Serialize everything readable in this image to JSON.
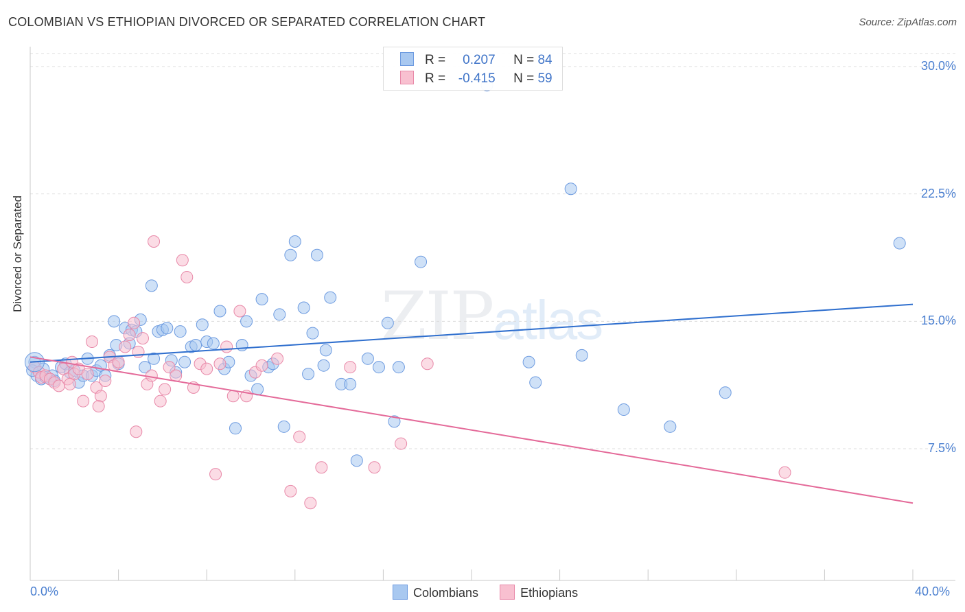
{
  "header": {
    "title": "COLOMBIAN VS ETHIOPIAN DIVORCED OR SEPARATED CORRELATION CHART",
    "source": "Source: ZipAtlas.com"
  },
  "watermark": {
    "zip": "ZIP",
    "atlas": "atlas"
  },
  "legend": {
    "r_label": "R =",
    "n_label": "N =",
    "rows": [
      {
        "r": "0.207",
        "n": "84",
        "color": "#a8c8f0",
        "border": "#6d9be0"
      },
      {
        "r": "-0.415",
        "n": "59",
        "color": "#f8c0d0",
        "border": "#e888a8"
      }
    ]
  },
  "bottom_legend": [
    {
      "label": "Colombians",
      "color": "#a8c8f0",
      "border": "#6d9be0"
    },
    {
      "label": "Ethiopians",
      "color": "#f8c0d0",
      "border": "#e888a8"
    }
  ],
  "chart_data": {
    "type": "scatter",
    "title": "COLOMBIAN VS ETHIOPIAN DIVORCED OR SEPARATED CORRELATION CHART",
    "xlabel": "",
    "ylabel": "Divorced or Separated",
    "xlim": [
      0,
      40
    ],
    "ylim": [
      0,
      31
    ],
    "x_tick_labels": [
      "0.0%",
      "40.0%"
    ],
    "y_ticks": [
      7.5,
      15.0,
      22.5,
      30.0
    ],
    "y_tick_labels": [
      "7.5%",
      "15.0%",
      "22.5%",
      "30.0%"
    ],
    "grid": true,
    "series": [
      {
        "name": "Colombians",
        "color": "#6d9be0",
        "fill": "#a8c8f0",
        "trend": {
          "x": [
            0,
            40
          ],
          "y": [
            12.6,
            16.0
          ],
          "color": "#2f6fce"
        },
        "points": [
          [
            0.2,
            12.6
          ],
          [
            0.3,
            11.8
          ],
          [
            0.5,
            11.6
          ],
          [
            0.6,
            12.2
          ],
          [
            0.7,
            11.7
          ],
          [
            0.9,
            11.6
          ],
          [
            1.0,
            11.8
          ],
          [
            1.1,
            11.5
          ],
          [
            1.4,
            12.3
          ],
          [
            1.6,
            12.5
          ],
          [
            1.8,
            12.0
          ],
          [
            2.0,
            12.1
          ],
          [
            2.2,
            11.4
          ],
          [
            2.4,
            11.8
          ],
          [
            2.6,
            12.8
          ],
          [
            2.8,
            11.8
          ],
          [
            3.0,
            12.1
          ],
          [
            3.2,
            12.4
          ],
          [
            3.4,
            11.8
          ],
          [
            3.6,
            13.0
          ],
          [
            3.8,
            15.0
          ],
          [
            3.9,
            13.6
          ],
          [
            4.0,
            12.5
          ],
          [
            4.3,
            14.6
          ],
          [
            4.5,
            13.7
          ],
          [
            4.6,
            14.5
          ],
          [
            4.8,
            14.4
          ],
          [
            5.0,
            15.1
          ],
          [
            5.2,
            12.3
          ],
          [
            5.5,
            17.1
          ],
          [
            5.6,
            12.8
          ],
          [
            5.8,
            14.4
          ],
          [
            6.0,
            14.5
          ],
          [
            6.2,
            14.6
          ],
          [
            6.4,
            12.7
          ],
          [
            6.6,
            12.0
          ],
          [
            6.8,
            14.4
          ],
          [
            7.0,
            12.6
          ],
          [
            7.3,
            13.5
          ],
          [
            7.5,
            13.6
          ],
          [
            7.8,
            14.8
          ],
          [
            8.0,
            13.8
          ],
          [
            8.3,
            13.7
          ],
          [
            8.6,
            15.6
          ],
          [
            8.8,
            12.2
          ],
          [
            9.0,
            12.6
          ],
          [
            9.3,
            8.7
          ],
          [
            9.6,
            13.6
          ],
          [
            9.8,
            15.0
          ],
          [
            10.0,
            11.8
          ],
          [
            10.3,
            11.0
          ],
          [
            10.5,
            16.3
          ],
          [
            10.8,
            12.3
          ],
          [
            11.0,
            12.5
          ],
          [
            11.3,
            15.4
          ],
          [
            11.5,
            8.8
          ],
          [
            11.8,
            18.9
          ],
          [
            12.0,
            19.7
          ],
          [
            12.4,
            15.8
          ],
          [
            12.6,
            11.9
          ],
          [
            12.8,
            14.3
          ],
          [
            13.0,
            18.9
          ],
          [
            13.3,
            12.4
          ],
          [
            13.6,
            16.4
          ],
          [
            13.4,
            13.3
          ],
          [
            14.1,
            11.3
          ],
          [
            14.5,
            11.3
          ],
          [
            14.8,
            6.8
          ],
          [
            15.3,
            12.8
          ],
          [
            15.8,
            12.3
          ],
          [
            16.2,
            14.9
          ],
          [
            16.5,
            9.1
          ],
          [
            16.7,
            12.3
          ],
          [
            17.7,
            18.5
          ],
          [
            20.7,
            28.9
          ],
          [
            22.6,
            12.6
          ],
          [
            22.9,
            11.4
          ],
          [
            24.5,
            22.8
          ],
          [
            25.0,
            13.0
          ],
          [
            26.9,
            9.8
          ],
          [
            29.0,
            8.8
          ],
          [
            31.5,
            10.8
          ],
          [
            39.4,
            19.6
          ],
          [
            0.1,
            12.1
          ]
        ]
      },
      {
        "name": "Ethiopians",
        "color": "#e888a8",
        "fill": "#f8c0d0",
        "trend": {
          "x": [
            0,
            40
          ],
          "y": [
            12.9,
            4.3
          ],
          "color": "#e46a99"
        },
        "points": [
          [
            0.2,
            12.3
          ],
          [
            0.4,
            12.0
          ],
          [
            0.5,
            11.7
          ],
          [
            0.7,
            11.8
          ],
          [
            0.9,
            11.6
          ],
          [
            1.1,
            11.4
          ],
          [
            1.3,
            11.2
          ],
          [
            1.5,
            12.2
          ],
          [
            1.7,
            11.6
          ],
          [
            1.9,
            12.6
          ],
          [
            2.0,
            11.9
          ],
          [
            2.2,
            12.2
          ],
          [
            2.4,
            10.3
          ],
          [
            2.6,
            11.9
          ],
          [
            2.8,
            13.8
          ],
          [
            3.0,
            11.1
          ],
          [
            3.2,
            10.6
          ],
          [
            3.4,
            11.5
          ],
          [
            3.6,
            12.9
          ],
          [
            3.8,
            12.4
          ],
          [
            4.0,
            12.6
          ],
          [
            4.3,
            13.5
          ],
          [
            4.5,
            14.2
          ],
          [
            4.7,
            14.9
          ],
          [
            4.9,
            13.2
          ],
          [
            5.1,
            14.0
          ],
          [
            5.3,
            11.3
          ],
          [
            5.5,
            11.8
          ],
          [
            5.6,
            19.7
          ],
          [
            5.9,
            10.3
          ],
          [
            6.1,
            11.0
          ],
          [
            6.3,
            12.3
          ],
          [
            6.6,
            11.8
          ],
          [
            6.9,
            18.6
          ],
          [
            7.1,
            17.6
          ],
          [
            7.4,
            11.1
          ],
          [
            7.7,
            12.5
          ],
          [
            8.0,
            12.2
          ],
          [
            8.4,
            6.0
          ],
          [
            8.6,
            12.5
          ],
          [
            8.9,
            13.5
          ],
          [
            9.2,
            10.6
          ],
          [
            9.5,
            15.6
          ],
          [
            9.8,
            10.6
          ],
          [
            10.2,
            12.0
          ],
          [
            10.5,
            12.4
          ],
          [
            11.2,
            12.8
          ],
          [
            11.8,
            5.0
          ],
          [
            12.2,
            8.2
          ],
          [
            12.7,
            4.3
          ],
          [
            13.2,
            6.4
          ],
          [
            14.5,
            12.3
          ],
          [
            15.6,
            6.4
          ],
          [
            16.8,
            7.8
          ],
          [
            18.0,
            12.5
          ],
          [
            34.2,
            6.1
          ],
          [
            1.8,
            11.3
          ],
          [
            3.1,
            10.0
          ],
          [
            4.8,
            8.5
          ]
        ]
      }
    ]
  }
}
